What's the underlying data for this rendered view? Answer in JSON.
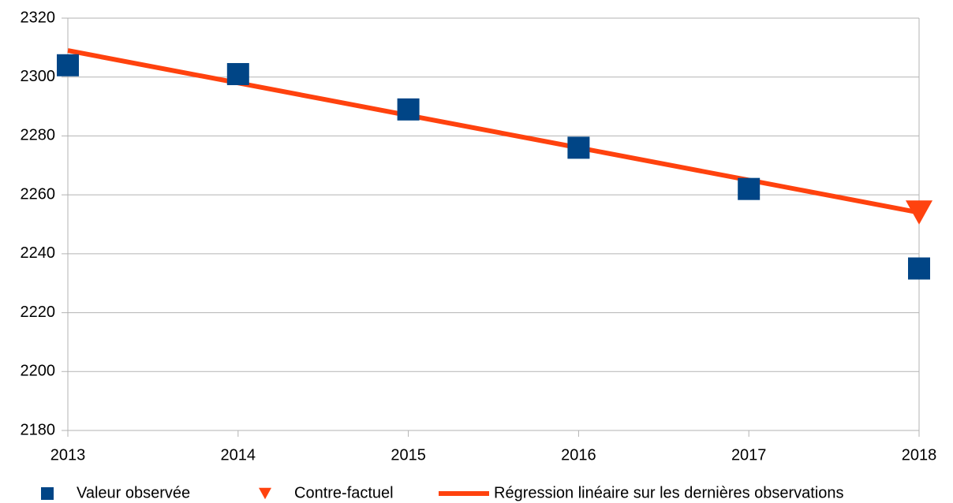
{
  "chart_data": {
    "type": "line",
    "x": [
      2013,
      2014,
      2015,
      2016,
      2017,
      2018
    ],
    "xlim": [
      2013,
      2018
    ],
    "xticks": [
      2013,
      2014,
      2015,
      2016,
      2017,
      2018
    ],
    "ylim": [
      2180,
      2320
    ],
    "yticks": [
      2180,
      2200,
      2220,
      2240,
      2260,
      2280,
      2300,
      2320
    ],
    "grid": true,
    "legend": "bottom",
    "series": [
      {
        "name": "Valeur observée",
        "color": "#004586",
        "marker": "square",
        "values": [
          2304,
          2301,
          2289,
          2276,
          2262,
          2235
        ]
      },
      {
        "name": "Contre-factuel",
        "color": "#ff420e",
        "marker": "triangle-down",
        "values": [
          null,
          null,
          null,
          null,
          null,
          2254
        ]
      },
      {
        "name": "Régression linéaire sur les dernières observations",
        "color": "#ff420e",
        "marker": "line",
        "values": [
          2309,
          2298,
          2287,
          2276,
          2265,
          2254
        ]
      }
    ]
  }
}
